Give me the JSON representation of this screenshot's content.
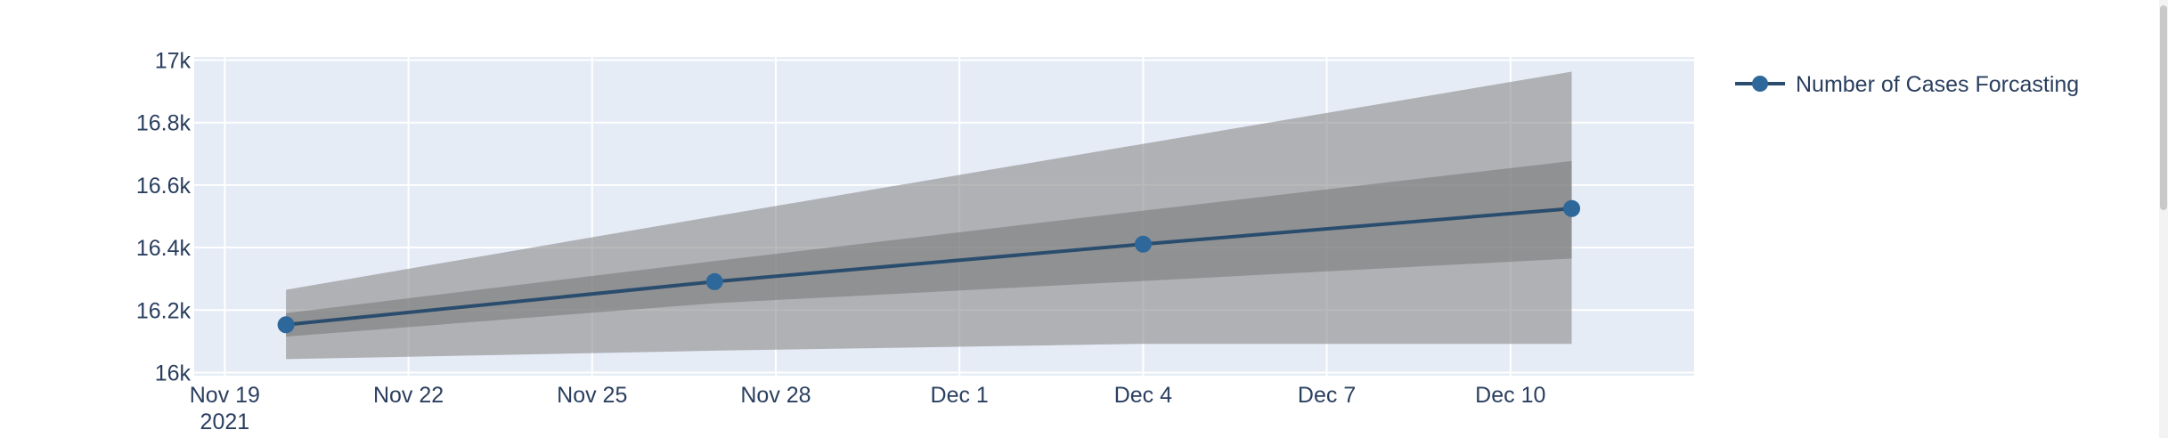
{
  "chart_data": {
    "type": "line",
    "title": "",
    "xlabel": "",
    "ylabel": "",
    "x": [
      "2021-11-20",
      "2021-11-27",
      "2021-12-04",
      "2021-12-11"
    ],
    "series": [
      {
        "name": "Number of Cases Forcasting",
        "values": [
          16153,
          16291,
          16411,
          16525
        ],
        "color": "#2a4d6e",
        "marker_color": "#2e679a"
      }
    ],
    "bands": [
      {
        "level": "outer",
        "lower": [
          16043,
          16070,
          16092,
          16092
        ],
        "upper": [
          16265,
          16500,
          16732,
          16963
        ],
        "color": "#8a8a8a",
        "opacity": 0.6
      },
      {
        "level": "inner",
        "lower": [
          16115,
          16222,
          16293,
          16365
        ],
        "upper": [
          16190,
          16357,
          16518,
          16677
        ],
        "color": "#6b6b6b",
        "opacity": 0.45
      }
    ],
    "xlim": [
      "2021-11-18 12:00",
      "2021-12-13"
    ],
    "ylim": [
      15990,
      17010
    ],
    "x_ticks": [
      {
        "date": "2021-11-19",
        "label": "Nov 19",
        "sublabel": "2021"
      },
      {
        "date": "2021-11-22",
        "label": "Nov 22"
      },
      {
        "date": "2021-11-25",
        "label": "Nov 25"
      },
      {
        "date": "2021-11-28",
        "label": "Nov 28"
      },
      {
        "date": "2021-12-01",
        "label": "Dec 1"
      },
      {
        "date": "2021-12-04",
        "label": "Dec 4"
      },
      {
        "date": "2021-12-07",
        "label": "Dec 7"
      },
      {
        "date": "2021-12-10",
        "label": "Dec 10"
      }
    ],
    "y_ticks": [
      {
        "value": 16000,
        "label": "16k"
      },
      {
        "value": 16200,
        "label": "16.2k"
      },
      {
        "value": 16400,
        "label": "16.4k"
      },
      {
        "value": 16600,
        "label": "16.6k"
      },
      {
        "value": 16800,
        "label": "16.8k"
      },
      {
        "value": 17000,
        "label": "17k"
      }
    ],
    "grid": true,
    "plot_bg": "#e5ecf6",
    "legend_position": "top-right"
  }
}
